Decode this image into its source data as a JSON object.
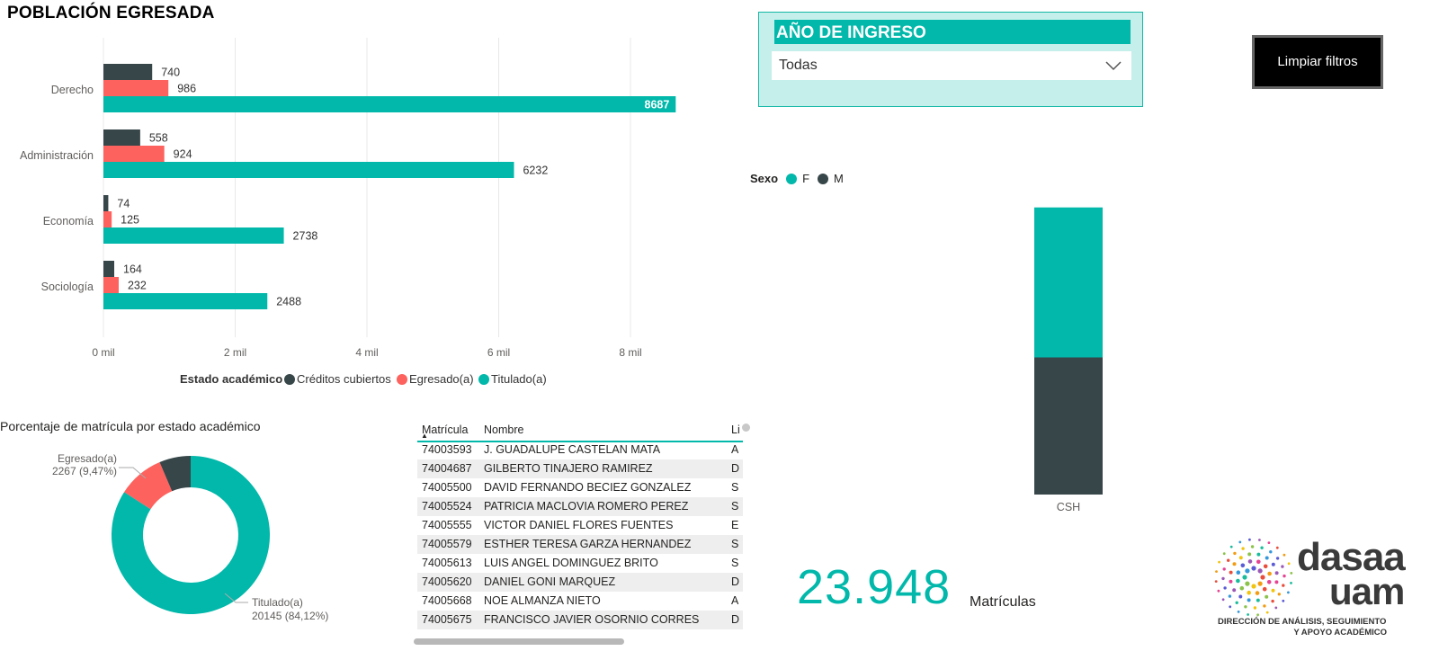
{
  "page_title": "POBLACIÓN EGRESADA",
  "colors": {
    "teal": "#01b8aa",
    "dark": "#374649",
    "red": "#fd625e",
    "slicer_bg": "#c5efea"
  },
  "slicer": {
    "title": "AÑO DE INGRESO",
    "selected": "Todas"
  },
  "clear_filters_label": "Limpiar filtros",
  "sex_legend": {
    "title": "Sexo",
    "items": [
      {
        "label": "F",
        "color": "#01b8aa"
      },
      {
        "label": "M",
        "color": "#374649"
      }
    ]
  },
  "chart_data": [
    {
      "type": "bar",
      "orientation": "horizontal",
      "title": "",
      "categories": [
        "Derecho",
        "Administración",
        "Economía",
        "Sociología"
      ],
      "series": [
        {
          "name": "Créditos cubiertos",
          "color": "#374649",
          "values": [
            740,
            558,
            74,
            164
          ]
        },
        {
          "name": "Egresado(a)",
          "color": "#fd625e",
          "values": [
            986,
            924,
            125,
            232
          ]
        },
        {
          "name": "Titulado(a)",
          "color": "#01b8aa",
          "values": [
            8687,
            6232,
            2738,
            2488
          ]
        }
      ],
      "x_ticks": [
        "0 mil",
        "2 mil",
        "4 mil",
        "6 mil",
        "8 mil"
      ],
      "x_tick_values": [
        0,
        2000,
        4000,
        6000,
        8000
      ],
      "xlim": [
        0,
        8700
      ],
      "grid": true,
      "legend_title": "Estado académico",
      "legend_position": "bottom"
    },
    {
      "type": "pie",
      "variant": "donut",
      "title": "Porcentaje de matrícula por estado académico",
      "slices": [
        {
          "name": "Titulado(a)",
          "value": 20145,
          "percent": "84,12%",
          "color": "#01b8aa",
          "label": "20145 (84,12%)"
        },
        {
          "name": "Egresado(a)",
          "value": 2267,
          "percent": "9,47%",
          "color": "#fd625e",
          "label": "2267 (9,47%)"
        },
        {
          "name": "Créditos cubiertos",
          "value": 1536,
          "color": "#374649"
        }
      ]
    },
    {
      "type": "bar",
      "orientation": "vertical",
      "stacked": true,
      "categories": [
        "CSH"
      ],
      "series": [
        {
          "name": "F",
          "color": "#01b8aa",
          "values": [
            12510
          ]
        },
        {
          "name": "M",
          "color": "#374649",
          "values": [
            11438
          ]
        }
      ]
    }
  ],
  "table": {
    "columns": [
      "Matrícula",
      "Nombre",
      "Li"
    ],
    "rows": [
      [
        "74003593",
        "J. GUADALUPE CASTELAN MATA",
        "A"
      ],
      [
        "74004687",
        "GILBERTO TINAJERO RAMIREZ",
        "D"
      ],
      [
        "74005500",
        "DAVID FERNANDO BECIEZ GONZALEZ",
        "S"
      ],
      [
        "74005524",
        "PATRICIA MACLOVIA ROMERO PEREZ",
        "S"
      ],
      [
        "74005555",
        "VICTOR DANIEL FLORES FUENTES",
        "E"
      ],
      [
        "74005579",
        "ESTHER TERESA GARZA HERNANDEZ",
        "S"
      ],
      [
        "74005613",
        "LUIS ANGEL DOMINGUEZ BRITO",
        "S"
      ],
      [
        "74005620",
        "DANIEL GONI MARQUEZ",
        "D"
      ],
      [
        "74005668",
        "NOE ALMANZA NIETO",
        "A"
      ],
      [
        "74005675",
        "FRANCISCO JAVIER OSORNIO CORRES",
        "D"
      ]
    ]
  },
  "kpi": {
    "value": "23.948",
    "label": "Matrículas"
  },
  "logo": {
    "name_top": "dasaa",
    "name_bottom": "uam",
    "subtitle_line1": "DIRECCIÓN DE ANÁLISIS, SEGUIMIENTO",
    "subtitle_line2": "Y APOYO ACADÉMICO"
  }
}
